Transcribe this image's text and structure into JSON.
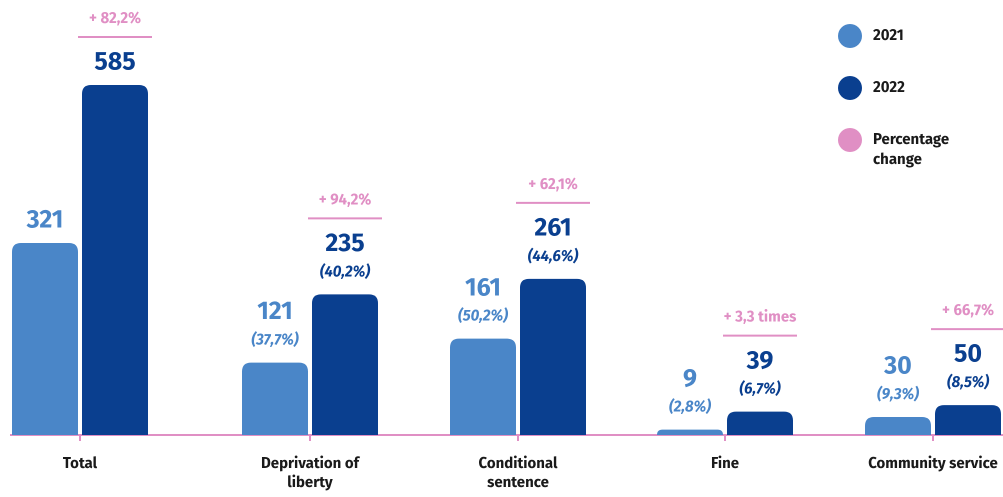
{
  "chart_data": {
    "type": "bar",
    "categories": [
      "Total",
      "Deprivation of liberty",
      "Conditional sentence",
      "Fine",
      "Community service"
    ],
    "series": [
      {
        "name": "2021",
        "color": "#4a86c8",
        "values": [
          321,
          121,
          161,
          9,
          30
        ],
        "share_labels": [
          null,
          "(37,7%)",
          "(50,2%)",
          "(2,8%)",
          "(9,3%)"
        ]
      },
      {
        "name": "2022",
        "color": "#0a3f8f",
        "values": [
          585,
          235,
          261,
          39,
          50
        ],
        "share_labels": [
          null,
          "(40,2%)",
          "(44,6%)",
          "(6,7%)",
          "(8,5%)"
        ]
      }
    ],
    "change": {
      "name": "Percentage change",
      "color": "#e08fc4",
      "labels": [
        "+ 82,2%",
        "+ 94,2%",
        "+ 62,1%",
        "+ 3,3 times",
        "+ 66,7%"
      ]
    },
    "legend": "top-right"
  }
}
